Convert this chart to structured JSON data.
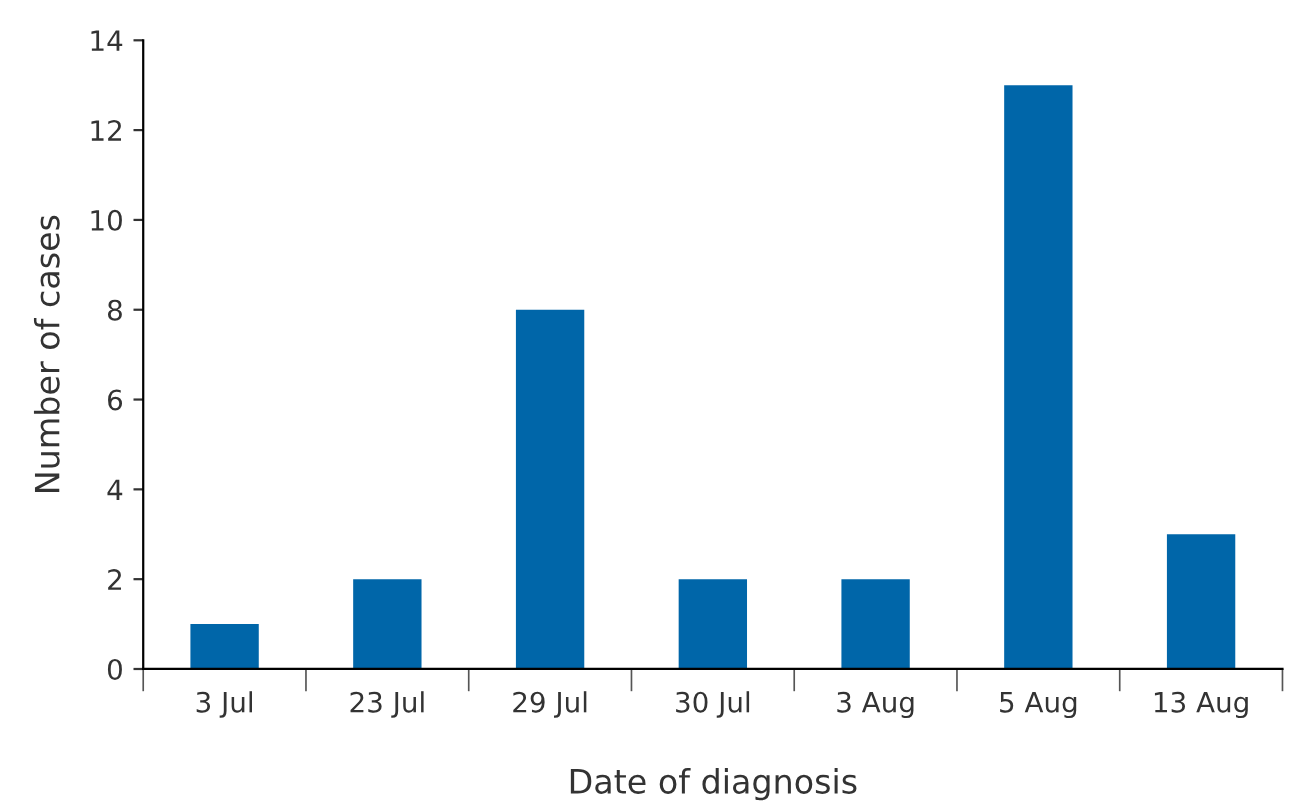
{
  "chart_data": {
    "type": "bar",
    "xlabel": "Date of diagnosis",
    "ylabel": "Number of cases",
    "categories": [
      "3 Jul",
      "23 Jul",
      "29 Jul",
      "30 Jul",
      "3 Aug",
      "5 Aug",
      "13 Aug"
    ],
    "values": [
      1,
      2,
      8,
      2,
      2,
      13,
      3
    ],
    "color": "#0066a9",
    "ylim": [
      0,
      14
    ],
    "yticks": [
      0,
      2,
      4,
      6,
      8,
      10,
      12,
      14
    ],
    "grid": false,
    "legend": false
  }
}
